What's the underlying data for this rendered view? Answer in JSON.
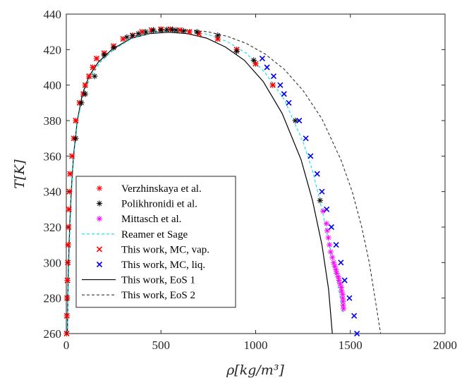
{
  "chart_data": {
    "type": "scatter",
    "xlabel": "ρ[kg/m³]",
    "ylabel": "T[K]",
    "xlim": [
      0,
      2000
    ],
    "ylim": [
      260,
      440
    ],
    "xticks": [
      0,
      500,
      1000,
      1500,
      2000
    ],
    "yticks": [
      260,
      280,
      300,
      320,
      340,
      360,
      380,
      400,
      420,
      440
    ],
    "x_tick_labels": [
      "0",
      "500",
      "1000",
      "1500",
      "2000"
    ],
    "y_tick_labels": [
      "260",
      "280",
      "300",
      "320",
      "340",
      "360",
      "380",
      "400",
      "420",
      "440"
    ],
    "grid": false,
    "legend_position": "bottom-left",
    "series": [
      {
        "name": "Verzhinskaya et al.",
        "marker": "asterisk",
        "color": "#ff0000",
        "points": [
          [
            2,
            260
          ],
          [
            3,
            270
          ],
          [
            4,
            280
          ],
          [
            6,
            290
          ],
          [
            8,
            300
          ],
          [
            10,
            310
          ],
          [
            12,
            320
          ],
          [
            14,
            330
          ],
          [
            16,
            340
          ],
          [
            20,
            350
          ],
          [
            30,
            360
          ],
          [
            40,
            370
          ],
          [
            50,
            380
          ],
          [
            70,
            390
          ],
          [
            90,
            395
          ],
          [
            100,
            400
          ],
          [
            120,
            405
          ],
          [
            140,
            410
          ],
          [
            160,
            415
          ],
          [
            200,
            418
          ],
          [
            250,
            422
          ],
          [
            300,
            426
          ],
          [
            350,
            428
          ],
          [
            400,
            430
          ],
          [
            450,
            431
          ],
          [
            500,
            431.5
          ],
          [
            550,
            431.5
          ],
          [
            600,
            431
          ],
          [
            650,
            430
          ],
          [
            700,
            429
          ],
          [
            800,
            426
          ],
          [
            900,
            420
          ],
          [
            1000,
            412
          ],
          [
            1090,
            400
          ]
        ]
      },
      {
        "name": "Polikhronidi et al.",
        "marker": "asterisk",
        "color": "#000000",
        "points": [
          [
            50,
            370
          ],
          [
            80,
            390
          ],
          [
            100,
            395
          ],
          [
            150,
            405
          ],
          [
            200,
            417
          ],
          [
            250,
            421
          ],
          [
            320,
            427
          ],
          [
            350,
            428
          ],
          [
            380,
            429
          ],
          [
            420,
            430
          ],
          [
            460,
            431
          ],
          [
            500,
            431
          ],
          [
            530,
            431.3
          ],
          [
            560,
            431.3
          ],
          [
            580,
            431
          ],
          [
            620,
            430.5
          ],
          [
            690,
            430
          ],
          [
            800,
            428
          ],
          [
            900,
            419
          ],
          [
            990,
            414
          ],
          [
            1210,
            380
          ],
          [
            1340,
            335
          ]
        ]
      },
      {
        "name": "Mittasch et al.",
        "marker": "asterisk",
        "color": "#ff00ff",
        "points": [
          [
            1356,
            329
          ],
          [
            1374,
            322
          ],
          [
            1378,
            318
          ],
          [
            1384,
            314
          ],
          [
            1390,
            310
          ],
          [
            1396,
            306
          ],
          [
            1405,
            303
          ],
          [
            1412,
            300
          ],
          [
            1418,
            298
          ],
          [
            1424,
            296
          ],
          [
            1428,
            294
          ],
          [
            1436,
            292
          ],
          [
            1440,
            290
          ],
          [
            1446,
            288
          ],
          [
            1452,
            286
          ],
          [
            1454,
            284
          ],
          [
            1459,
            282
          ],
          [
            1460,
            280
          ],
          [
            1462,
            278
          ],
          [
            1462,
            276
          ],
          [
            1464,
            274
          ]
        ]
      },
      {
        "name": "Reamer et Sage",
        "marker": "dashed-line",
        "color": "#00e5ee",
        "points": [
          [
            6,
            260
          ],
          [
            9,
            280
          ],
          [
            14,
            300
          ],
          [
            20,
            320
          ],
          [
            28,
            340
          ],
          [
            40,
            360
          ],
          [
            60,
            380
          ],
          [
            90,
            395
          ],
          [
            130,
            405
          ],
          [
            180,
            413
          ],
          [
            250,
            420
          ],
          [
            350,
            426.5
          ],
          [
            450,
            429.5
          ],
          [
            550,
            430.5
          ],
          [
            650,
            430.2
          ],
          [
            750,
            428.5
          ],
          [
            850,
            424.5
          ],
          [
            950,
            418
          ],
          [
            1050,
            407
          ],
          [
            1150,
            392
          ],
          [
            1250,
            368
          ],
          [
            1300,
            352
          ],
          [
            1350,
            330
          ],
          [
            1390,
            310
          ],
          [
            1430,
            290
          ],
          [
            1460,
            272
          ]
        ]
      },
      {
        "name": "This work, MC, vap.",
        "marker": "x",
        "color": "#ff0000",
        "points": [
          [
            2,
            260
          ],
          [
            3,
            270
          ],
          [
            4,
            280
          ],
          [
            6,
            290
          ],
          [
            8,
            300
          ],
          [
            10,
            310
          ],
          [
            12,
            320
          ],
          [
            14,
            330
          ],
          [
            16,
            340
          ],
          [
            20,
            350
          ],
          [
            30,
            360
          ],
          [
            40,
            370
          ],
          [
            50,
            380
          ],
          [
            70,
            390
          ],
          [
            90,
            395
          ],
          [
            100,
            400
          ],
          [
            120,
            405
          ],
          [
            140,
            410
          ],
          [
            160,
            415
          ],
          [
            200,
            418
          ],
          [
            250,
            422
          ],
          [
            300,
            426
          ],
          [
            350,
            428
          ],
          [
            400,
            430
          ],
          [
            450,
            431
          ],
          [
            500,
            431.5
          ],
          [
            550,
            431.5
          ],
          [
            600,
            431
          ],
          [
            650,
            430
          ],
          [
            700,
            429
          ],
          [
            800,
            426
          ],
          [
            900,
            420
          ],
          [
            1000,
            412
          ],
          [
            1090,
            400
          ]
        ]
      },
      {
        "name": "This work, MC, liq.",
        "marker": "x",
        "color": "#0000ee",
        "points": [
          [
            1035,
            415
          ],
          [
            1060,
            410
          ],
          [
            1095,
            405
          ],
          [
            1130,
            400
          ],
          [
            1150,
            395
          ],
          [
            1175,
            390
          ],
          [
            1230,
            380
          ],
          [
            1265,
            370
          ],
          [
            1290,
            360
          ],
          [
            1325,
            350
          ],
          [
            1350,
            340
          ],
          [
            1375,
            330
          ],
          [
            1400,
            320
          ],
          [
            1425,
            310
          ],
          [
            1450,
            300
          ],
          [
            1470,
            290
          ],
          [
            1495,
            280
          ],
          [
            1520,
            270
          ],
          [
            1535,
            260
          ]
        ]
      },
      {
        "name": "This work, EoS 1",
        "marker": "solid-line",
        "color": "#000000",
        "points": [
          [
            6,
            260
          ],
          [
            8,
            280
          ],
          [
            12,
            300
          ],
          [
            18,
            320
          ],
          [
            26,
            340
          ],
          [
            38,
            360
          ],
          [
            58,
            380
          ],
          [
            85,
            395
          ],
          [
            120,
            405
          ],
          [
            170,
            413
          ],
          [
            240,
            420
          ],
          [
            340,
            426.2
          ],
          [
            440,
            429
          ],
          [
            540,
            429.8
          ],
          [
            640,
            429
          ],
          [
            740,
            426.5
          ],
          [
            840,
            421.5
          ],
          [
            940,
            414
          ],
          [
            1040,
            402
          ],
          [
            1140,
            384
          ],
          [
            1240,
            358
          ],
          [
            1300,
            335
          ],
          [
            1350,
            310
          ],
          [
            1385,
            285
          ],
          [
            1405,
            260
          ]
        ]
      },
      {
        "name": "This work, EoS 2",
        "marker": "dashed-line",
        "color": "#333333",
        "points": [
          [
            5,
            260
          ],
          [
            8,
            280
          ],
          [
            12,
            300
          ],
          [
            18,
            320
          ],
          [
            26,
            340
          ],
          [
            38,
            360
          ],
          [
            58,
            380
          ],
          [
            88,
            395
          ],
          [
            130,
            405
          ],
          [
            180,
            413
          ],
          [
            250,
            420
          ],
          [
            350,
            427
          ],
          [
            450,
            430
          ],
          [
            550,
            431
          ],
          [
            650,
            431
          ],
          [
            750,
            430
          ],
          [
            850,
            427.5
          ],
          [
            950,
            423.5
          ],
          [
            1050,
            417.5
          ],
          [
            1150,
            409
          ],
          [
            1250,
            397
          ],
          [
            1350,
            381
          ],
          [
            1450,
            358
          ],
          [
            1510,
            340
          ],
          [
            1560,
            320
          ],
          [
            1600,
            300
          ],
          [
            1630,
            280
          ],
          [
            1660,
            260
          ]
        ]
      }
    ]
  }
}
